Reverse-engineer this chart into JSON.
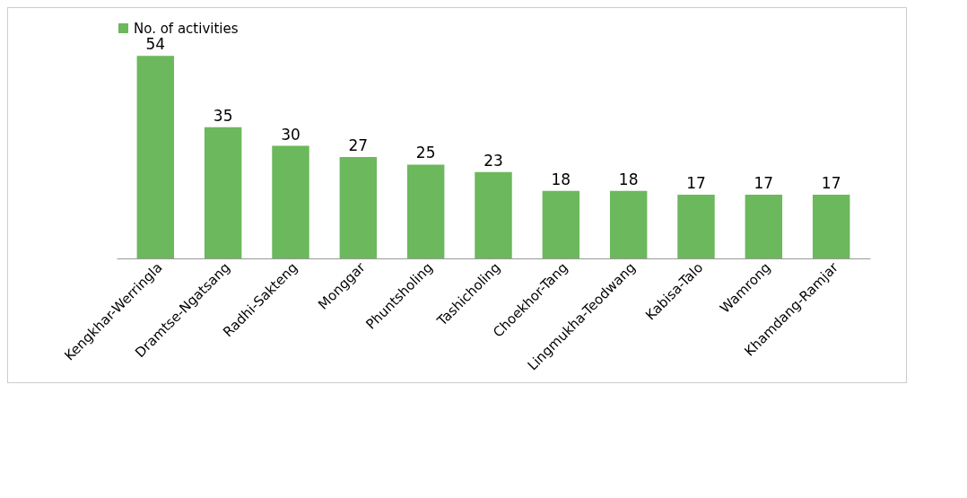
{
  "chart_data": {
    "type": "bar",
    "categories": [
      "Kengkhar-Werringla",
      "Dramtse-Ngatsang",
      "Radhi-Sakteng",
      "Monggar",
      "Phuntsholing",
      "Tashicholing",
      "Choekhor-Tang",
      "Lingmukha-Teodwang",
      "Kabisa-Talo",
      "Wamrong",
      "Khamdang-Ramjar"
    ],
    "series": [
      {
        "name": "No. of activities",
        "color": "#6cb85c",
        "values": [
          54,
          35,
          30,
          27,
          25,
          23,
          18,
          18,
          17,
          17,
          17
        ]
      }
    ],
    "data_labels": true,
    "legend": "top",
    "tick_labels": "x"
  }
}
